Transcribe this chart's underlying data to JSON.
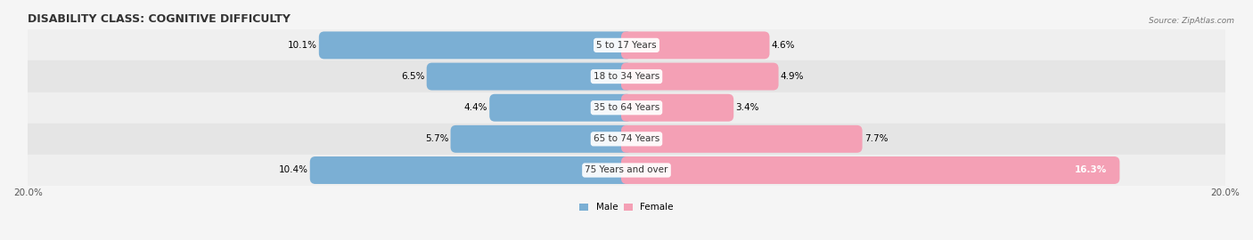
{
  "title": "DISABILITY CLASS: COGNITIVE DIFFICULTY",
  "source": "Source: ZipAtlas.com",
  "categories": [
    "5 to 17 Years",
    "18 to 34 Years",
    "35 to 64 Years",
    "65 to 74 Years",
    "75 Years and over"
  ],
  "male_values": [
    10.1,
    6.5,
    4.4,
    5.7,
    10.4
  ],
  "female_values": [
    4.6,
    4.9,
    3.4,
    7.7,
    16.3
  ],
  "male_color": "#7bafd4",
  "female_color": "#f4a0b5",
  "axis_max": 20.0,
  "title_fontsize": 9,
  "label_fontsize": 7.5,
  "tick_fontsize": 7.5,
  "bar_height": 0.52,
  "background_color": "#f5f5f5",
  "row_colors": [
    "#efefef",
    "#e5e5e5"
  ]
}
